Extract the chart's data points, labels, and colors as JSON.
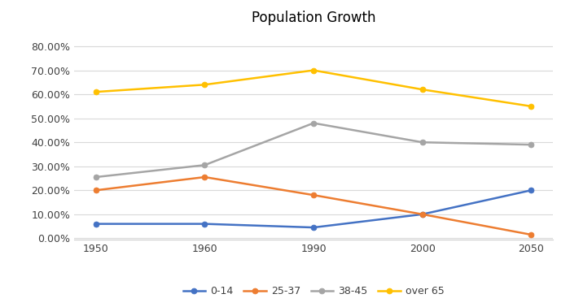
{
  "title": "Population Growth",
  "x_labels": [
    "1950",
    "1960",
    "1990",
    "2000",
    "2050"
  ],
  "series": {
    "0-14": {
      "values": [
        0.06,
        0.06,
        0.045,
        0.1,
        0.2
      ],
      "color": "#4472C4",
      "marker": "o"
    },
    "25-37": {
      "values": [
        0.2,
        0.255,
        0.18,
        0.1,
        0.015
      ],
      "color": "#ED7D31",
      "marker": "o"
    },
    "38-45": {
      "values": [
        0.255,
        0.305,
        0.48,
        0.4,
        0.39
      ],
      "color": "#A5A5A5",
      "marker": "o"
    },
    "over 65": {
      "values": [
        0.61,
        0.64,
        0.7,
        0.62,
        0.55
      ],
      "color": "#FFC000",
      "marker": "o"
    }
  },
  "ylim": [
    -0.005,
    0.865
  ],
  "yticks": [
    0.0,
    0.1,
    0.2,
    0.3,
    0.4,
    0.5,
    0.6,
    0.7,
    0.8
  ],
  "ytick_labels": [
    "0.00%",
    "10.00%",
    "20.00%",
    "30.00%",
    "40.00%",
    "50.00%",
    "60.00%",
    "70.00%",
    "80.00%"
  ],
  "background_color": "#FFFFFF",
  "grid_color": "#D9D9D9",
  "title_fontsize": 12,
  "axis_fontsize": 9,
  "legend_fontsize": 9,
  "line_width": 1.8,
  "marker_size": 5
}
